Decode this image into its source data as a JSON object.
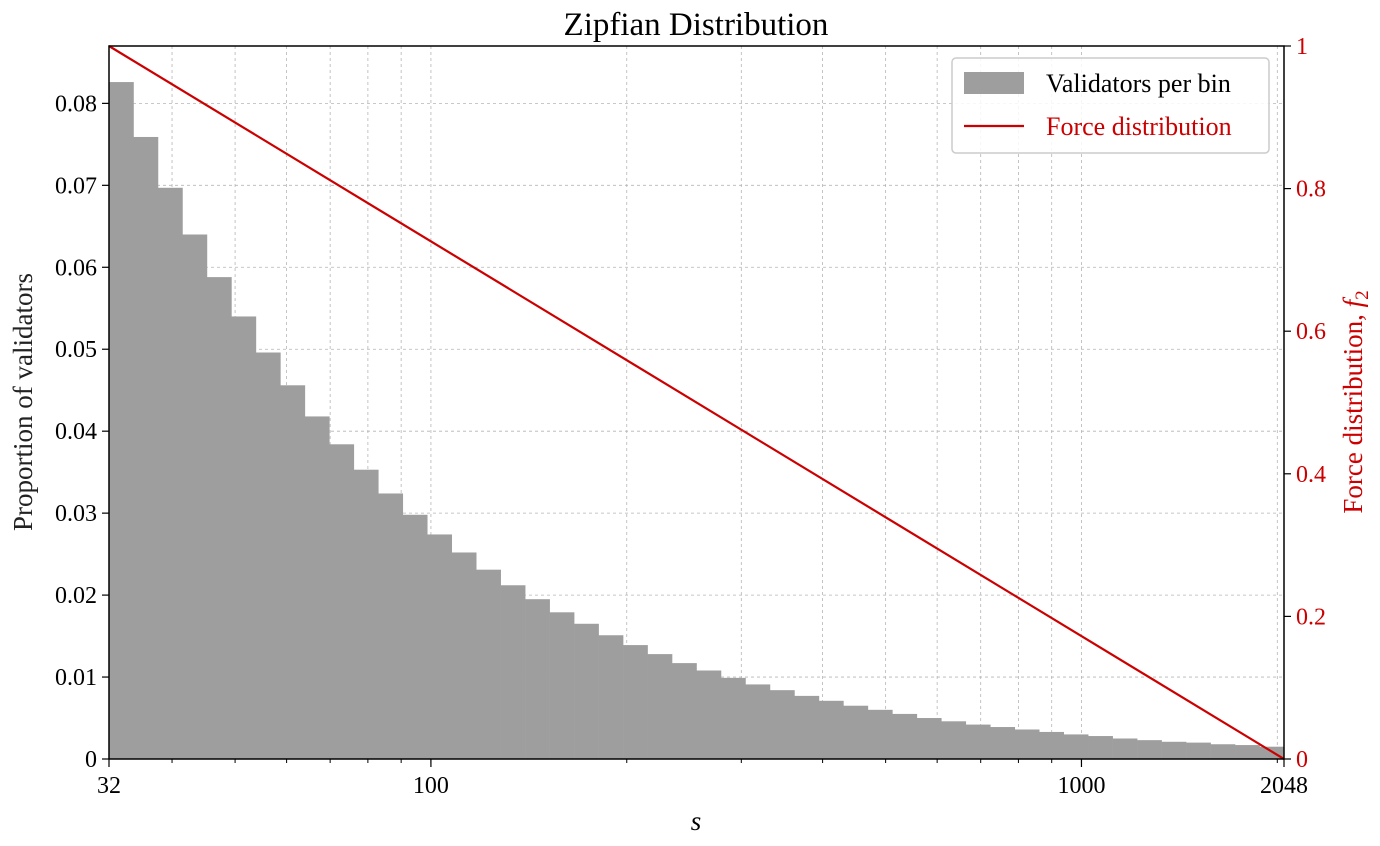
{
  "chart_data": {
    "type": "bar",
    "title": "Zipfian Distribution",
    "xlabel": "s",
    "ylabel": "Proportion of validators",
    "y2label_main": "Force distribution, ",
    "y2label_symbol": "f",
    "y2label_sub": "2",
    "xscale": "log",
    "xlim": [
      32,
      2048
    ],
    "ylim": [
      0,
      0.087
    ],
    "y2lim": [
      0,
      1
    ],
    "grid": true,
    "legend_position": "top-right",
    "x_ticks": [
      {
        "value": 32,
        "label": "32"
      },
      {
        "value": 100,
        "label": "100"
      },
      {
        "value": 1000,
        "label": "1000"
      },
      {
        "value": 2048,
        "label": "2048"
      }
    ],
    "y_ticks": [
      {
        "value": 0,
        "label": "0"
      },
      {
        "value": 0.01,
        "label": "0.01"
      },
      {
        "value": 0.02,
        "label": "0.02"
      },
      {
        "value": 0.03,
        "label": "0.03"
      },
      {
        "value": 0.04,
        "label": "0.04"
      },
      {
        "value": 0.05,
        "label": "0.05"
      },
      {
        "value": 0.06,
        "label": "0.06"
      },
      {
        "value": 0.07,
        "label": "0.07"
      },
      {
        "value": 0.08,
        "label": "0.08"
      }
    ],
    "y2_ticks": [
      {
        "value": 0,
        "label": "0"
      },
      {
        "value": 0.2,
        "label": "0.2"
      },
      {
        "value": 0.4,
        "label": "0.4"
      },
      {
        "value": 0.6,
        "label": "0.6"
      },
      {
        "value": 0.8,
        "label": "0.8"
      },
      {
        "value": 1,
        "label": "1"
      }
    ],
    "series": [
      {
        "name": "Validators per bin",
        "type": "bar",
        "color": "#9e9e9e",
        "bins": 48,
        "values": [
          0.0826,
          0.0759,
          0.0697,
          0.064,
          0.0588,
          0.054,
          0.0496,
          0.0456,
          0.0418,
          0.0384,
          0.0353,
          0.0324,
          0.0298,
          0.0274,
          0.0252,
          0.0231,
          0.0212,
          0.0195,
          0.0179,
          0.0165,
          0.0151,
          0.0139,
          0.0128,
          0.0117,
          0.0108,
          0.0099,
          0.0091,
          0.0084,
          0.0077,
          0.0071,
          0.0065,
          0.006,
          0.0055,
          0.005,
          0.0046,
          0.0042,
          0.0039,
          0.0036,
          0.0033,
          0.003,
          0.0028,
          0.0025,
          0.0023,
          0.0021,
          0.002,
          0.0018,
          0.0017,
          0.0015
        ]
      },
      {
        "name": "Force distribution",
        "type": "line",
        "color": "#cc0000",
        "axis": "right",
        "x": [
          32,
          2048
        ],
        "y": [
          1,
          0
        ]
      }
    ]
  }
}
